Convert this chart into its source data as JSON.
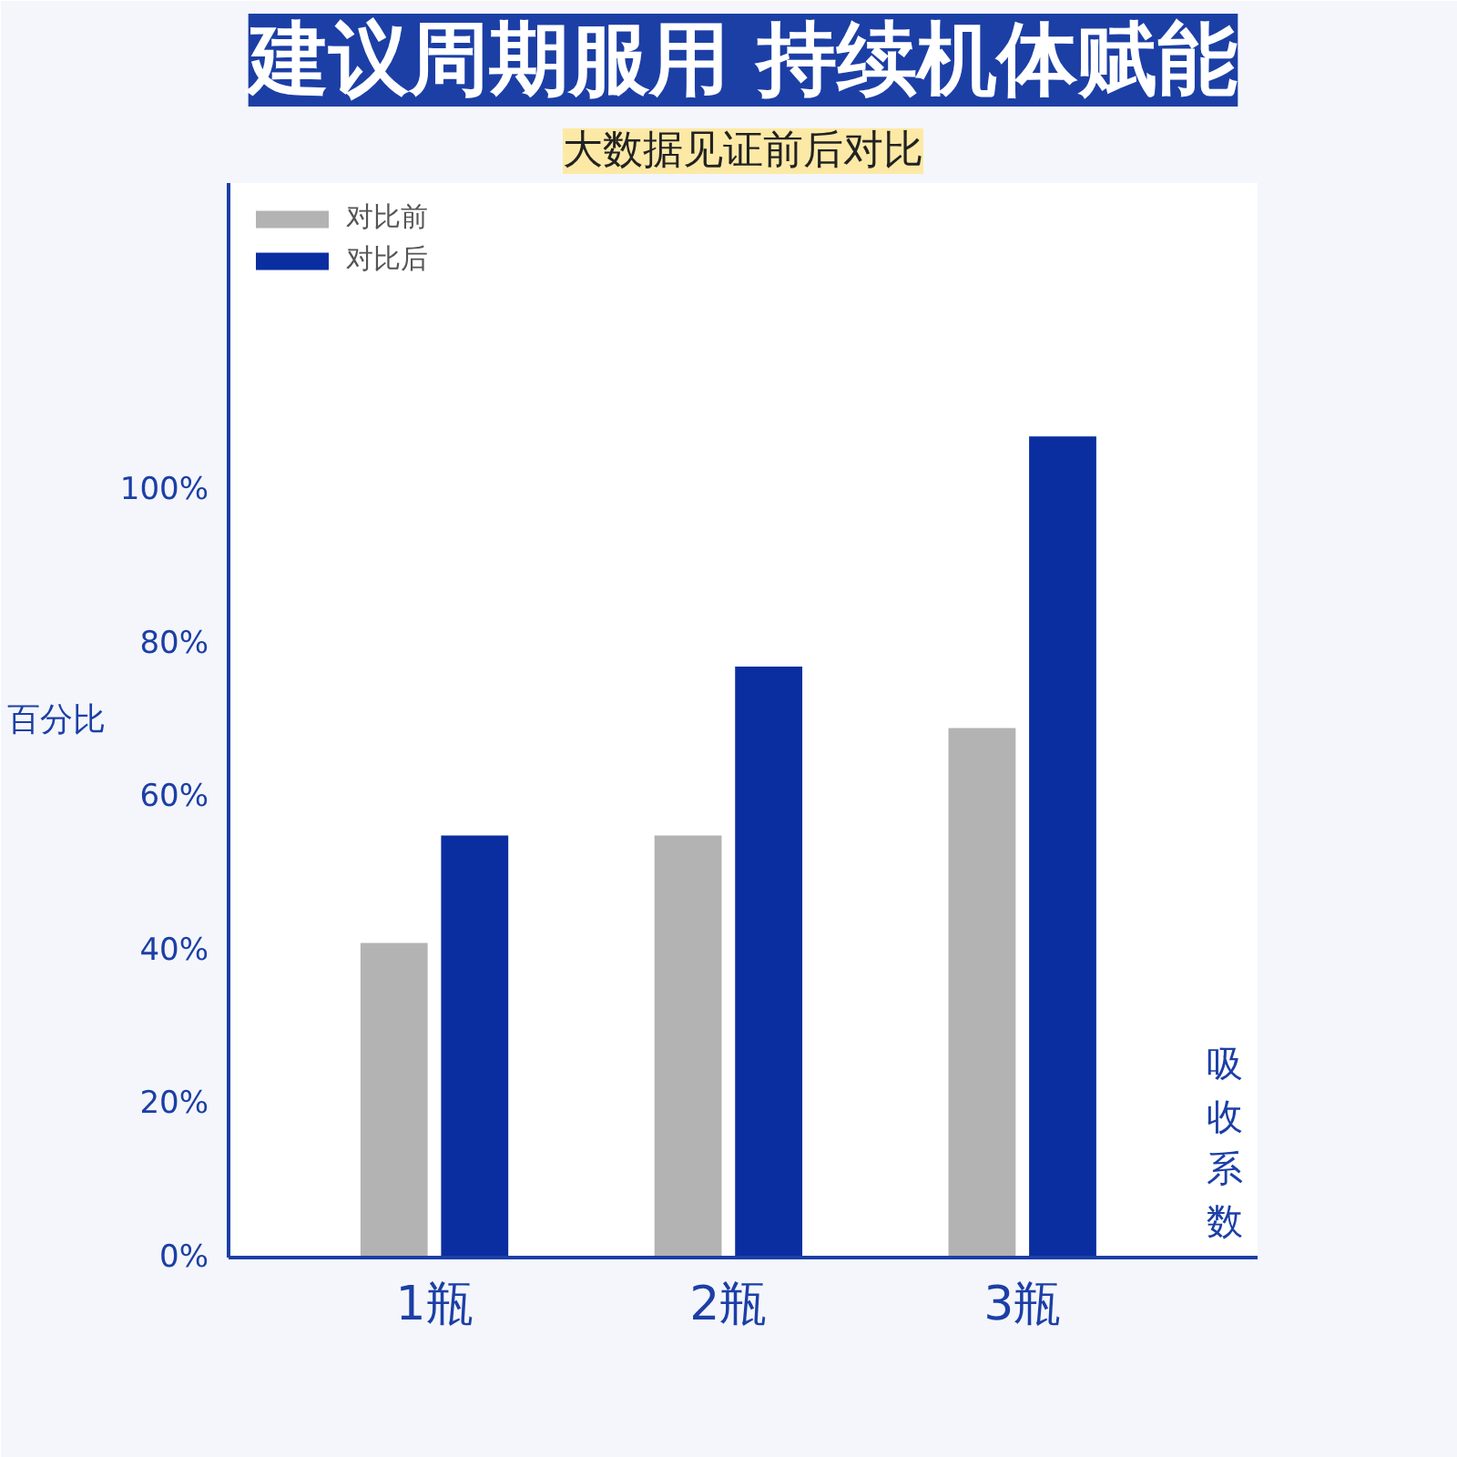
{
  "chart_data": {
    "type": "bar",
    "title": "建议周期服用 持续机体赋能",
    "subtitle": "大数据见证前后对比",
    "ylabel": "百分比",
    "xlabel": "吸收系数",
    "categories": [
      "1瓶",
      "2瓶",
      "3瓶"
    ],
    "series": [
      {
        "name": "对比前",
        "color": "#b3b3b3",
        "values": [
          41,
          55,
          69
        ]
      },
      {
        "name": "对比后",
        "color": "#0a2ea0",
        "values": [
          55,
          77,
          107
        ]
      }
    ],
    "ylim": [
      0,
      140
    ],
    "yticks": [
      {
        "value": 0,
        "label": "0%"
      },
      {
        "value": 20,
        "label": "20%"
      },
      {
        "value": 40,
        "label": "40%"
      },
      {
        "value": 60,
        "label": "60%"
      },
      {
        "value": 80,
        "label": "80%"
      },
      {
        "value": 100,
        "label": "100%"
      }
    ],
    "grid": false,
    "legend": "top left"
  }
}
